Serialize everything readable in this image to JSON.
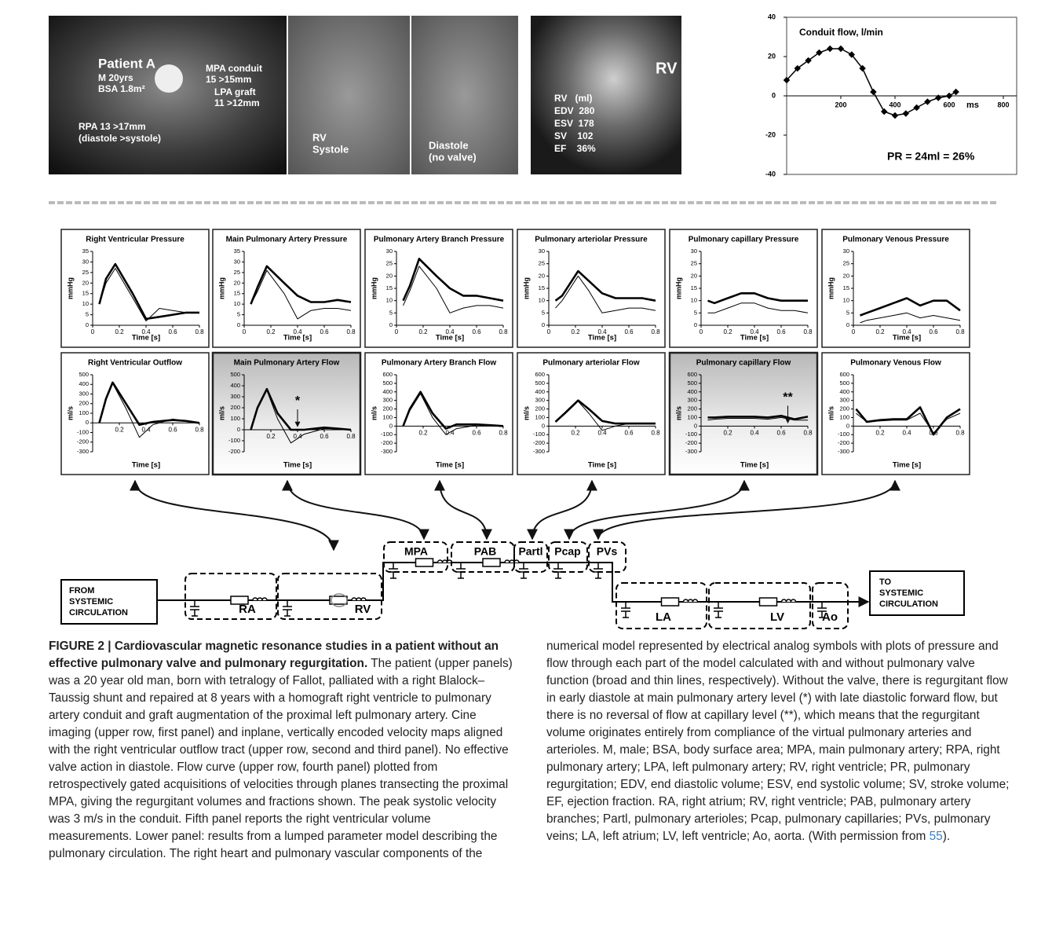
{
  "figure": {
    "images": [
      {
        "texts": [
          "Patient A",
          "M 20yrs",
          "BSA 1.8m²",
          "MPA conduit",
          "15 >15mm",
          "LPA graft",
          "11 >12mm",
          "RPA 13 >17mm",
          "(diastole >systole)"
        ]
      },
      {
        "texts": [
          "RV",
          "Systole"
        ]
      },
      {
        "texts": [
          "Diastole",
          "(no valve)"
        ]
      },
      {
        "texts": [
          "RV",
          "RV   (ml)",
          "EDV  280",
          "ESV  178",
          "SV    102",
          "EF    36%"
        ]
      }
    ],
    "conduit_chart": {
      "title": "Conduit flow, l/min",
      "annotation": "PR = 24ml = 26%",
      "x_unit": "ms",
      "xlim": [
        0,
        800
      ],
      "xticks": [
        200,
        400,
        600,
        800
      ],
      "ylim": [
        -40,
        40
      ],
      "yticks": [
        -40,
        -20,
        0,
        20,
        40
      ],
      "x": [
        0,
        40,
        80,
        120,
        160,
        200,
        240,
        280,
        320,
        360,
        400,
        440,
        480,
        520,
        560,
        600,
        625
      ],
      "values": [
        8,
        14,
        18,
        22,
        24,
        24,
        21,
        14,
        2,
        -8,
        -10,
        -9,
        -6,
        -3,
        -1,
        0,
        2
      ]
    },
    "plots": [
      {
        "title": "Right Ventricular Pressure",
        "ylabel": "mmHg",
        "xlabel": "Time [s]",
        "ylim": [
          0,
          35
        ],
        "yticks": [
          0,
          5,
          10,
          15,
          20,
          25,
          30,
          35
        ],
        "xlim": [
          0,
          0.8
        ],
        "xticks": [
          0,
          0.2,
          0.4,
          0.6,
          0.8
        ],
        "x": [
          0.05,
          0.1,
          0.17,
          0.3,
          0.4,
          0.5,
          0.6,
          0.7,
          0.8
        ],
        "series": [
          {
            "values": [
              10,
              22,
              29,
              15,
              3,
              4,
              5,
              6,
              6
            ]
          },
          {
            "values": [
              10,
              20,
              27,
              13,
              2,
              8,
              7,
              6,
              6
            ]
          }
        ]
      },
      {
        "title": "Main Pulmonary Artery Pressure",
        "ylabel": "mmHg",
        "xlabel": "Time [s]",
        "ylim": [
          0,
          35
        ],
        "yticks": [
          0,
          5,
          10,
          15,
          20,
          25,
          30,
          35
        ],
        "xlim": [
          0,
          0.8
        ],
        "xticks": [
          0,
          0.2,
          0.4,
          0.6,
          0.8
        ],
        "x": [
          0.05,
          0.1,
          0.17,
          0.3,
          0.4,
          0.5,
          0.6,
          0.7,
          0.8
        ],
        "series": [
          {
            "values": [
              10,
              18,
              28,
              20,
              14,
              11,
              11,
              12,
              11
            ]
          },
          {
            "values": [
              10,
              16,
              26,
              15,
              3,
              7,
              8,
              8,
              7
            ]
          }
        ]
      },
      {
        "title": "Pulmonary Artery Branch Pressure",
        "ylabel": "mmHg",
        "xlabel": "Time [s]",
        "ylim": [
          0,
          30
        ],
        "yticks": [
          0,
          5,
          10,
          15,
          20,
          25,
          30
        ],
        "xlim": [
          0,
          0.8
        ],
        "xticks": [
          0,
          0.2,
          0.4,
          0.6,
          0.8
        ],
        "x": [
          0.05,
          0.1,
          0.17,
          0.3,
          0.4,
          0.5,
          0.6,
          0.7,
          0.8
        ],
        "series": [
          {
            "values": [
              10,
              16,
              27,
              20,
              15,
              12,
              12,
              11,
              10
            ]
          },
          {
            "values": [
              8,
              14,
              24,
              15,
              5,
              7,
              8,
              8,
              7
            ]
          }
        ]
      },
      {
        "title": "Pulmonary arteriolar Pressure",
        "ylabel": "mmHg",
        "xlabel": "Time [s]",
        "ylim": [
          0,
          30
        ],
        "yticks": [
          0,
          5,
          10,
          15,
          20,
          25,
          30
        ],
        "xlim": [
          0,
          0.8
        ],
        "xticks": [
          0,
          0.2,
          0.4,
          0.6,
          0.8
        ],
        "x": [
          0.05,
          0.1,
          0.22,
          0.3,
          0.4,
          0.5,
          0.6,
          0.7,
          0.8
        ],
        "series": [
          {
            "values": [
              10,
              12,
              22,
              18,
              13,
              11,
              11,
              11,
              10
            ]
          },
          {
            "values": [
              7,
              10,
              20,
              14,
              5,
              6,
              7,
              7,
              6
            ]
          }
        ]
      },
      {
        "title": "Pulmonary capillary Pressure",
        "ylabel": "mmHg",
        "xlabel": "Time [s]",
        "ylim": [
          0,
          30
        ],
        "yticks": [
          0,
          5,
          10,
          15,
          20,
          25,
          30
        ],
        "xlim": [
          0,
          0.8
        ],
        "xticks": [
          0,
          0.2,
          0.4,
          0.6,
          0.8
        ],
        "x": [
          0.05,
          0.1,
          0.2,
          0.3,
          0.4,
          0.5,
          0.6,
          0.7,
          0.8
        ],
        "series": [
          {
            "values": [
              10,
              9,
              11,
              13,
              13,
              11,
              10,
              10,
              10
            ]
          },
          {
            "values": [
              5,
              5,
              7,
              9,
              9,
              7,
              6,
              6,
              5
            ]
          }
        ]
      },
      {
        "title": "Pulmonary Venous Pressure",
        "ylabel": "mmHg",
        "xlabel": "Time [s]",
        "ylim": [
          0,
          30
        ],
        "yticks": [
          0,
          5,
          10,
          15,
          20,
          25,
          30
        ],
        "xlim": [
          0,
          0.8
        ],
        "xticks": [
          0,
          0.2,
          0.4,
          0.6,
          0.8
        ],
        "x": [
          0.05,
          0.1,
          0.2,
          0.3,
          0.4,
          0.5,
          0.6,
          0.7,
          0.8
        ],
        "series": [
          {
            "values": [
              4,
              5,
              7,
              9,
              11,
              8,
              10,
              10,
              6
            ]
          },
          {
            "values": [
              1,
              2,
              3,
              4,
              5,
              3,
              4,
              3,
              2
            ]
          }
        ]
      },
      {
        "title": "Right Ventricular Outflow",
        "ylabel": "ml/s",
        "xlabel": "Time [s]",
        "ylim": [
          -300,
          500
        ],
        "yticks": [
          -300,
          -200,
          -100,
          0,
          100,
          200,
          300,
          400,
          500
        ],
        "xlim": [
          0,
          0.8
        ],
        "xticks": [
          0.2,
          0.4,
          0.6,
          0.8
        ],
        "x": [
          0.05,
          0.1,
          0.15,
          0.25,
          0.35,
          0.45,
          0.6,
          0.7,
          0.8
        ],
        "series": [
          {
            "values": [
              0,
              250,
              420,
              200,
              -20,
              10,
              30,
              20,
              0
            ]
          },
          {
            "values": [
              0,
              240,
              410,
              150,
              -150,
              -20,
              40,
              20,
              0
            ]
          }
        ]
      },
      {
        "title": "Main Pulmonary Artery Flow",
        "ylabel": "ml/s",
        "xlabel": "Time [s]",
        "ylim": [
          -200,
          500
        ],
        "yticks": [
          -200,
          -100,
          0,
          100,
          200,
          300,
          400,
          500
        ],
        "xlim": [
          0,
          0.8
        ],
        "xticks": [
          0.2,
          0.4,
          0.6,
          0.8
        ],
        "x": [
          0.05,
          0.1,
          0.17,
          0.25,
          0.35,
          0.45,
          0.6,
          0.7,
          0.8
        ],
        "series": [
          {
            "values": [
              0,
              200,
              370,
              150,
              0,
              0,
              20,
              10,
              0
            ]
          },
          {
            "values": [
              0,
              190,
              360,
              100,
              -120,
              -40,
              10,
              10,
              0
            ]
          }
        ],
        "shaded": true,
        "annotation": "*"
      },
      {
        "title": "Pulmonary Artery Branch Flow",
        "ylabel": "ml/s",
        "xlabel": "Time [s]",
        "ylim": [
          -300,
          600
        ],
        "yticks": [
          -300,
          -200,
          -100,
          0,
          100,
          200,
          300,
          400,
          500,
          600
        ],
        "xlim": [
          0,
          0.8
        ],
        "xticks": [
          0.2,
          0.4,
          0.6,
          0.8
        ],
        "x": [
          0.05,
          0.1,
          0.18,
          0.27,
          0.37,
          0.45,
          0.6,
          0.7,
          0.8
        ],
        "series": [
          {
            "values": [
              0,
              200,
              400,
              150,
              -30,
              20,
              20,
              10,
              0
            ]
          },
          {
            "values": [
              0,
              180,
              380,
              100,
              -100,
              -30,
              10,
              10,
              0
            ]
          }
        ]
      },
      {
        "title": "Pulmonary arteriolar Flow",
        "ylabel": "ml/s",
        "xlabel": "Time [s]",
        "ylim": [
          -300,
          600
        ],
        "yticks": [
          -300,
          -200,
          -100,
          0,
          100,
          200,
          300,
          400,
          500,
          600
        ],
        "xlim": [
          0,
          0.8
        ],
        "xticks": [
          0.2,
          0.4,
          0.6,
          0.8
        ],
        "x": [
          0.05,
          0.12,
          0.22,
          0.3,
          0.4,
          0.5,
          0.6,
          0.7,
          0.8
        ],
        "series": [
          {
            "values": [
              50,
              150,
              300,
              200,
              60,
              30,
              30,
              30,
              30
            ]
          },
          {
            "values": [
              50,
              140,
              290,
              150,
              -50,
              0,
              30,
              30,
              30
            ]
          }
        ]
      },
      {
        "title": "Pulmonary capillary Flow",
        "ylabel": "ml/s",
        "xlabel": "Time [s]",
        "ylim": [
          -300,
          600
        ],
        "yticks": [
          -300,
          -200,
          -100,
          0,
          100,
          200,
          300,
          400,
          500,
          600
        ],
        "xlim": [
          0,
          0.8
        ],
        "xticks": [
          0.2,
          0.4,
          0.6,
          0.8
        ],
        "x": [
          0.05,
          0.1,
          0.2,
          0.3,
          0.4,
          0.5,
          0.6,
          0.7,
          0.8
        ],
        "series": [
          {
            "values": [
              100,
              100,
              110,
              110,
              110,
              100,
              120,
              80,
              110
            ]
          },
          {
            "values": [
              70,
              80,
              90,
              90,
              90,
              80,
              100,
              70,
              70
            ]
          }
        ],
        "shaded": true,
        "annotation": "**"
      },
      {
        "title": "Pulmonary Venous Flow",
        "ylabel": "ml/s",
        "xlabel": "Time [s]",
        "ylim": [
          -300,
          600
        ],
        "yticks": [
          -300,
          -200,
          -100,
          0,
          100,
          200,
          300,
          400,
          500,
          600
        ],
        "xlim": [
          0,
          0.8
        ],
        "xticks": [
          0.2,
          0.4,
          0.6,
          0.8
        ],
        "x": [
          0.02,
          0.1,
          0.2,
          0.3,
          0.4,
          0.5,
          0.6,
          0.7,
          0.8
        ],
        "series": [
          {
            "values": [
              200,
              50,
              70,
              80,
              80,
              220,
              -100,
              100,
              200
            ]
          },
          {
            "values": [
              150,
              50,
              60,
              70,
              70,
              150,
              -80,
              80,
              150
            ]
          }
        ]
      }
    ],
    "circuit": {
      "source": [
        "FROM",
        "SYSTEMIC",
        "CIRCULATION"
      ],
      "sink": [
        "TO",
        "SYSTEMIC",
        "CIRCULATION"
      ],
      "blocks": [
        "RA",
        "RV",
        "MPA",
        "PAB",
        "Partl",
        "Pcap",
        "PVs",
        "LA",
        "LV",
        "Ao"
      ]
    }
  },
  "caption": {
    "title": "FIGURE 2 | Cardiovascular magnetic resonance studies in a patient without an effective pulmonary valve and pulmonary regurgitation.",
    "body": "The patient (upper panels) was a 20 year old man, born with tetralogy of Fallot, palliated with a right Blalock–Taussig shunt and repaired at 8 years with a homograft right ventricle to pulmonary artery conduit and graft augmentation of the proximal left pulmonary artery. Cine imaging (upper row, first panel) and inplane, vertically encoded velocity maps aligned with the right ventricular outflow tract (upper row, second and third panel). No effective valve action in diastole. Flow curve (upper row, fourth panel) plotted from retrospectively gated acquisitions of velocities through planes transecting the proximal MPA, giving the regurgitant volumes and fractions shown. The peak systolic velocity was 3 m/s in the conduit. Fifth panel reports the right ventricular volume measurements. Lower panel: results from a lumped parameter model describing the pulmonary circulation. The right heart and pulmonary vascular components of the numerical model represented by electrical analog symbols with plots of pressure and flow through each part of the model calculated with and without pulmonary valve function (broad and thin lines, respectively). Without the valve, there is regurgitant flow in early diastole at main pulmonary artery level (*) with late diastolic forward flow, but there is no reversal of flow at capillary level (**), which means that the regurgitant volume originates entirely from compliance of the virtual pulmonary arteries and arterioles. M, male; BSA, body surface area; MPA, main pulmonary artery; RPA, right pulmonary artery; LPA, left pulmonary artery; RV, right ventricle; PR, pulmonary regurgitation; EDV, end diastolic volume; ESV, end systolic volume; SV, stroke volume; EF, ejection fraction. RA, right atrium; RV, right ventricle; PAB, pulmonary artery branches; Partl, pulmonary arterioles; Pcap, pulmonary capillaries; PVs, pulmonary veins; LA, left atrium; LV, left ventricle; Ao, aorta. (With permission from",
    "ref": "55",
    "end": ")."
  }
}
